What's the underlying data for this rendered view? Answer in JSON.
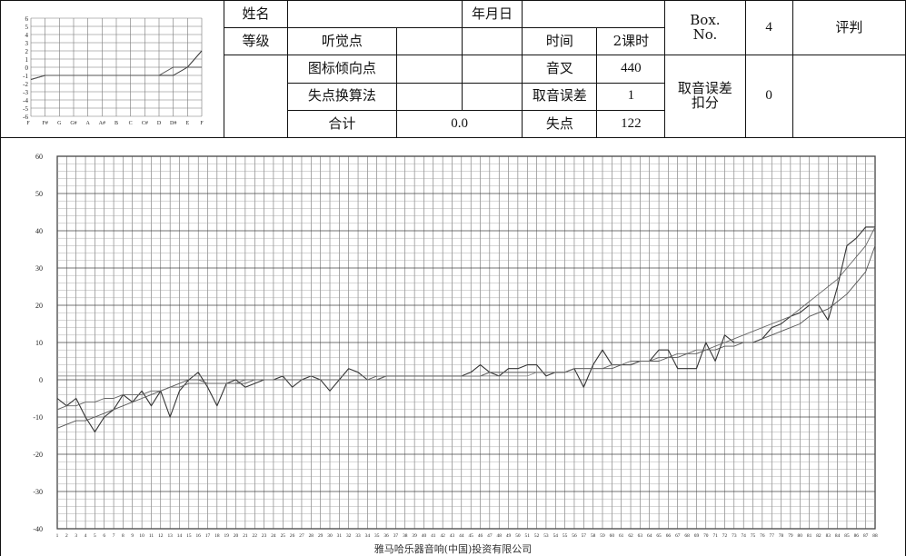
{
  "header": {
    "name_label": "姓名",
    "grade_label": "等级",
    "date_label": "年月日",
    "listening_label": "听觉点",
    "graph_tendency_label": "图标倾向点",
    "lost_points_label": "失点换算法",
    "total_label": "合计",
    "total_value": "0.0",
    "time_label": "时间",
    "time_value": "2课时",
    "fork_label": "音叉",
    "fork_value": "440",
    "pitch_error_label": "取音误差",
    "pitch_error_value": "1",
    "lost_label": "失点",
    "lost_value": "122",
    "box_no_label": "Box.\nNo.",
    "box_no_value": "4",
    "deduction_label": "取音误差\n扣分",
    "deduction_value": "0",
    "judge_label": "评判"
  },
  "footer": {
    "company": "雅马哈乐器音响(中国)投资有限公司"
  },
  "chart_data": [
    {
      "type": "line",
      "title": "",
      "y_ticks": [
        "6",
        "5",
        "4",
        "3",
        "2",
        "1",
        "0",
        "-1",
        "-2",
        "-3",
        "-4",
        "-5",
        "-6"
      ],
      "categories": [
        "F",
        "F#",
        "G",
        "G#",
        "A",
        "A#",
        "B",
        "C",
        "C#",
        "D",
        "D#",
        "E",
        "F"
      ],
      "ylim": [
        -6,
        6
      ],
      "grid": true,
      "series": [
        {
          "values": [
            -1.5,
            -1,
            -1,
            -1,
            -1,
            -1,
            -1,
            -1,
            -1,
            -1,
            -1,
            0,
            2
          ]
        },
        {
          "values": [
            -1.5,
            -1,
            -1,
            -1,
            -1,
            -1,
            -1,
            -1,
            -1,
            -1,
            0,
            0,
            0
          ]
        }
      ]
    },
    {
      "type": "line",
      "title": "",
      "xlabel": "",
      "ylabel": "",
      "ylim": [
        -40,
        60
      ],
      "y_ticks": [
        60,
        50,
        40,
        30,
        20,
        10,
        0,
        -10,
        -20,
        -30,
        -40
      ],
      "x_ticks": [
        "1",
        "2",
        "3",
        "4",
        "5",
        "6",
        "7",
        "8",
        "9",
        "10",
        "11",
        "12",
        "13",
        "14",
        "15",
        "16",
        "17",
        "18",
        "19",
        "20",
        "21",
        "22",
        "23",
        "24",
        "25",
        "26",
        "27",
        "28",
        "29",
        "30",
        "31",
        "32",
        "33",
        "34",
        "35",
        "36",
        "37",
        "38",
        "39",
        "40",
        "41",
        "42",
        "43",
        "44",
        "45",
        "46",
        "47",
        "48",
        "49",
        "50",
        "51",
        "52",
        "53",
        "54",
        "55",
        "56",
        "57",
        "58",
        "59",
        "60",
        "61",
        "62",
        "63",
        "64",
        "65",
        "66",
        "67",
        "68",
        "69",
        "70",
        "71",
        "72",
        "73",
        "74",
        "75",
        "76",
        "77",
        "78",
        "79",
        "80",
        "81",
        "82",
        "83",
        "84",
        "85",
        "86",
        "87",
        "88"
      ],
      "grid": true,
      "series": [
        {
          "values": [
            -5,
            -7,
            -5,
            -10,
            -14,
            -10,
            -8,
            -4,
            -6,
            -3,
            -7,
            -3,
            -10,
            -3,
            0,
            2,
            -2,
            -7,
            -1,
            0,
            -2,
            -1,
            0,
            0,
            1,
            -2,
            0,
            1,
            0,
            -3,
            0,
            3,
            2,
            0,
            0,
            1,
            1,
            1,
            1,
            1,
            1,
            1,
            1,
            1,
            2,
            4,
            2,
            1,
            3,
            3,
            4,
            4,
            1,
            2,
            2,
            3,
            -2,
            4,
            8,
            4,
            4,
            4,
            5,
            5,
            8,
            8,
            3,
            3,
            3,
            10,
            5,
            12,
            10,
            10,
            10,
            11,
            14,
            15,
            17,
            18,
            20,
            20,
            16,
            25,
            36,
            38,
            41,
            41
          ]
        },
        {
          "values": [
            -13,
            -12,
            -11,
            -11,
            -10,
            -9,
            -8,
            -7,
            -6,
            -5,
            -4,
            -3,
            -2,
            -1,
            0,
            0,
            -1,
            -1,
            -1,
            -1,
            -1,
            0,
            0,
            0,
            0,
            0,
            0,
            0,
            0,
            0,
            0,
            0,
            0,
            0,
            1,
            1,
            1,
            1,
            1,
            1,
            1,
            1,
            1,
            1,
            1,
            1,
            2,
            2,
            2,
            2,
            2,
            2,
            2,
            2,
            2,
            3,
            3,
            3,
            3,
            3,
            4,
            4,
            5,
            5,
            5,
            6,
            6,
            7,
            7,
            8,
            8,
            9,
            9,
            10,
            10,
            11,
            12,
            13,
            14,
            15,
            17,
            18,
            19,
            21,
            23,
            26,
            29,
            36
          ]
        },
        {
          "values": [
            -8,
            -7,
            -7,
            -6,
            -6,
            -5,
            -5,
            -4,
            -4,
            -4,
            -3,
            -3,
            -2,
            -2,
            -1,
            -1,
            -1,
            -1,
            -1,
            -1,
            0,
            0,
            0,
            0,
            0,
            0,
            0,
            0,
            0,
            0,
            0,
            0,
            0,
            0,
            0,
            1,
            1,
            1,
            1,
            1,
            1,
            1,
            1,
            1,
            1,
            1,
            2,
            2,
            2,
            2,
            2,
            2,
            2,
            2,
            2,
            3,
            3,
            3,
            3,
            4,
            4,
            5,
            5,
            5,
            6,
            6,
            7,
            7,
            8,
            8,
            9,
            10,
            11,
            12,
            13,
            14,
            15,
            16,
            17,
            19,
            21,
            23,
            25,
            27,
            30,
            33,
            36,
            41
          ]
        },
        {
          "values": [
            1,
            1,
            1,
            1,
            1,
            1,
            1,
            1,
            1,
            1,
            1,
            1,
            1,
            1,
            1,
            1,
            1,
            1,
            1,
            1,
            1,
            1,
            1,
            1,
            1,
            1,
            1,
            1,
            1,
            1,
            1,
            1,
            1,
            1,
            1,
            1,
            1,
            1,
            1,
            1,
            1,
            1,
            1,
            1,
            1,
            1,
            1,
            1,
            1,
            1,
            1,
            2,
            2,
            2,
            2,
            2,
            2,
            2,
            2,
            2,
            2,
            2,
            2,
            2,
            2,
            2,
            2,
            2,
            2,
            2,
            2,
            2,
            2,
            2,
            2,
            2,
            2,
            2,
            2,
            2,
            2,
            2,
            2,
            2,
            2,
            2,
            2,
            2
          ]
        }
      ]
    }
  ]
}
